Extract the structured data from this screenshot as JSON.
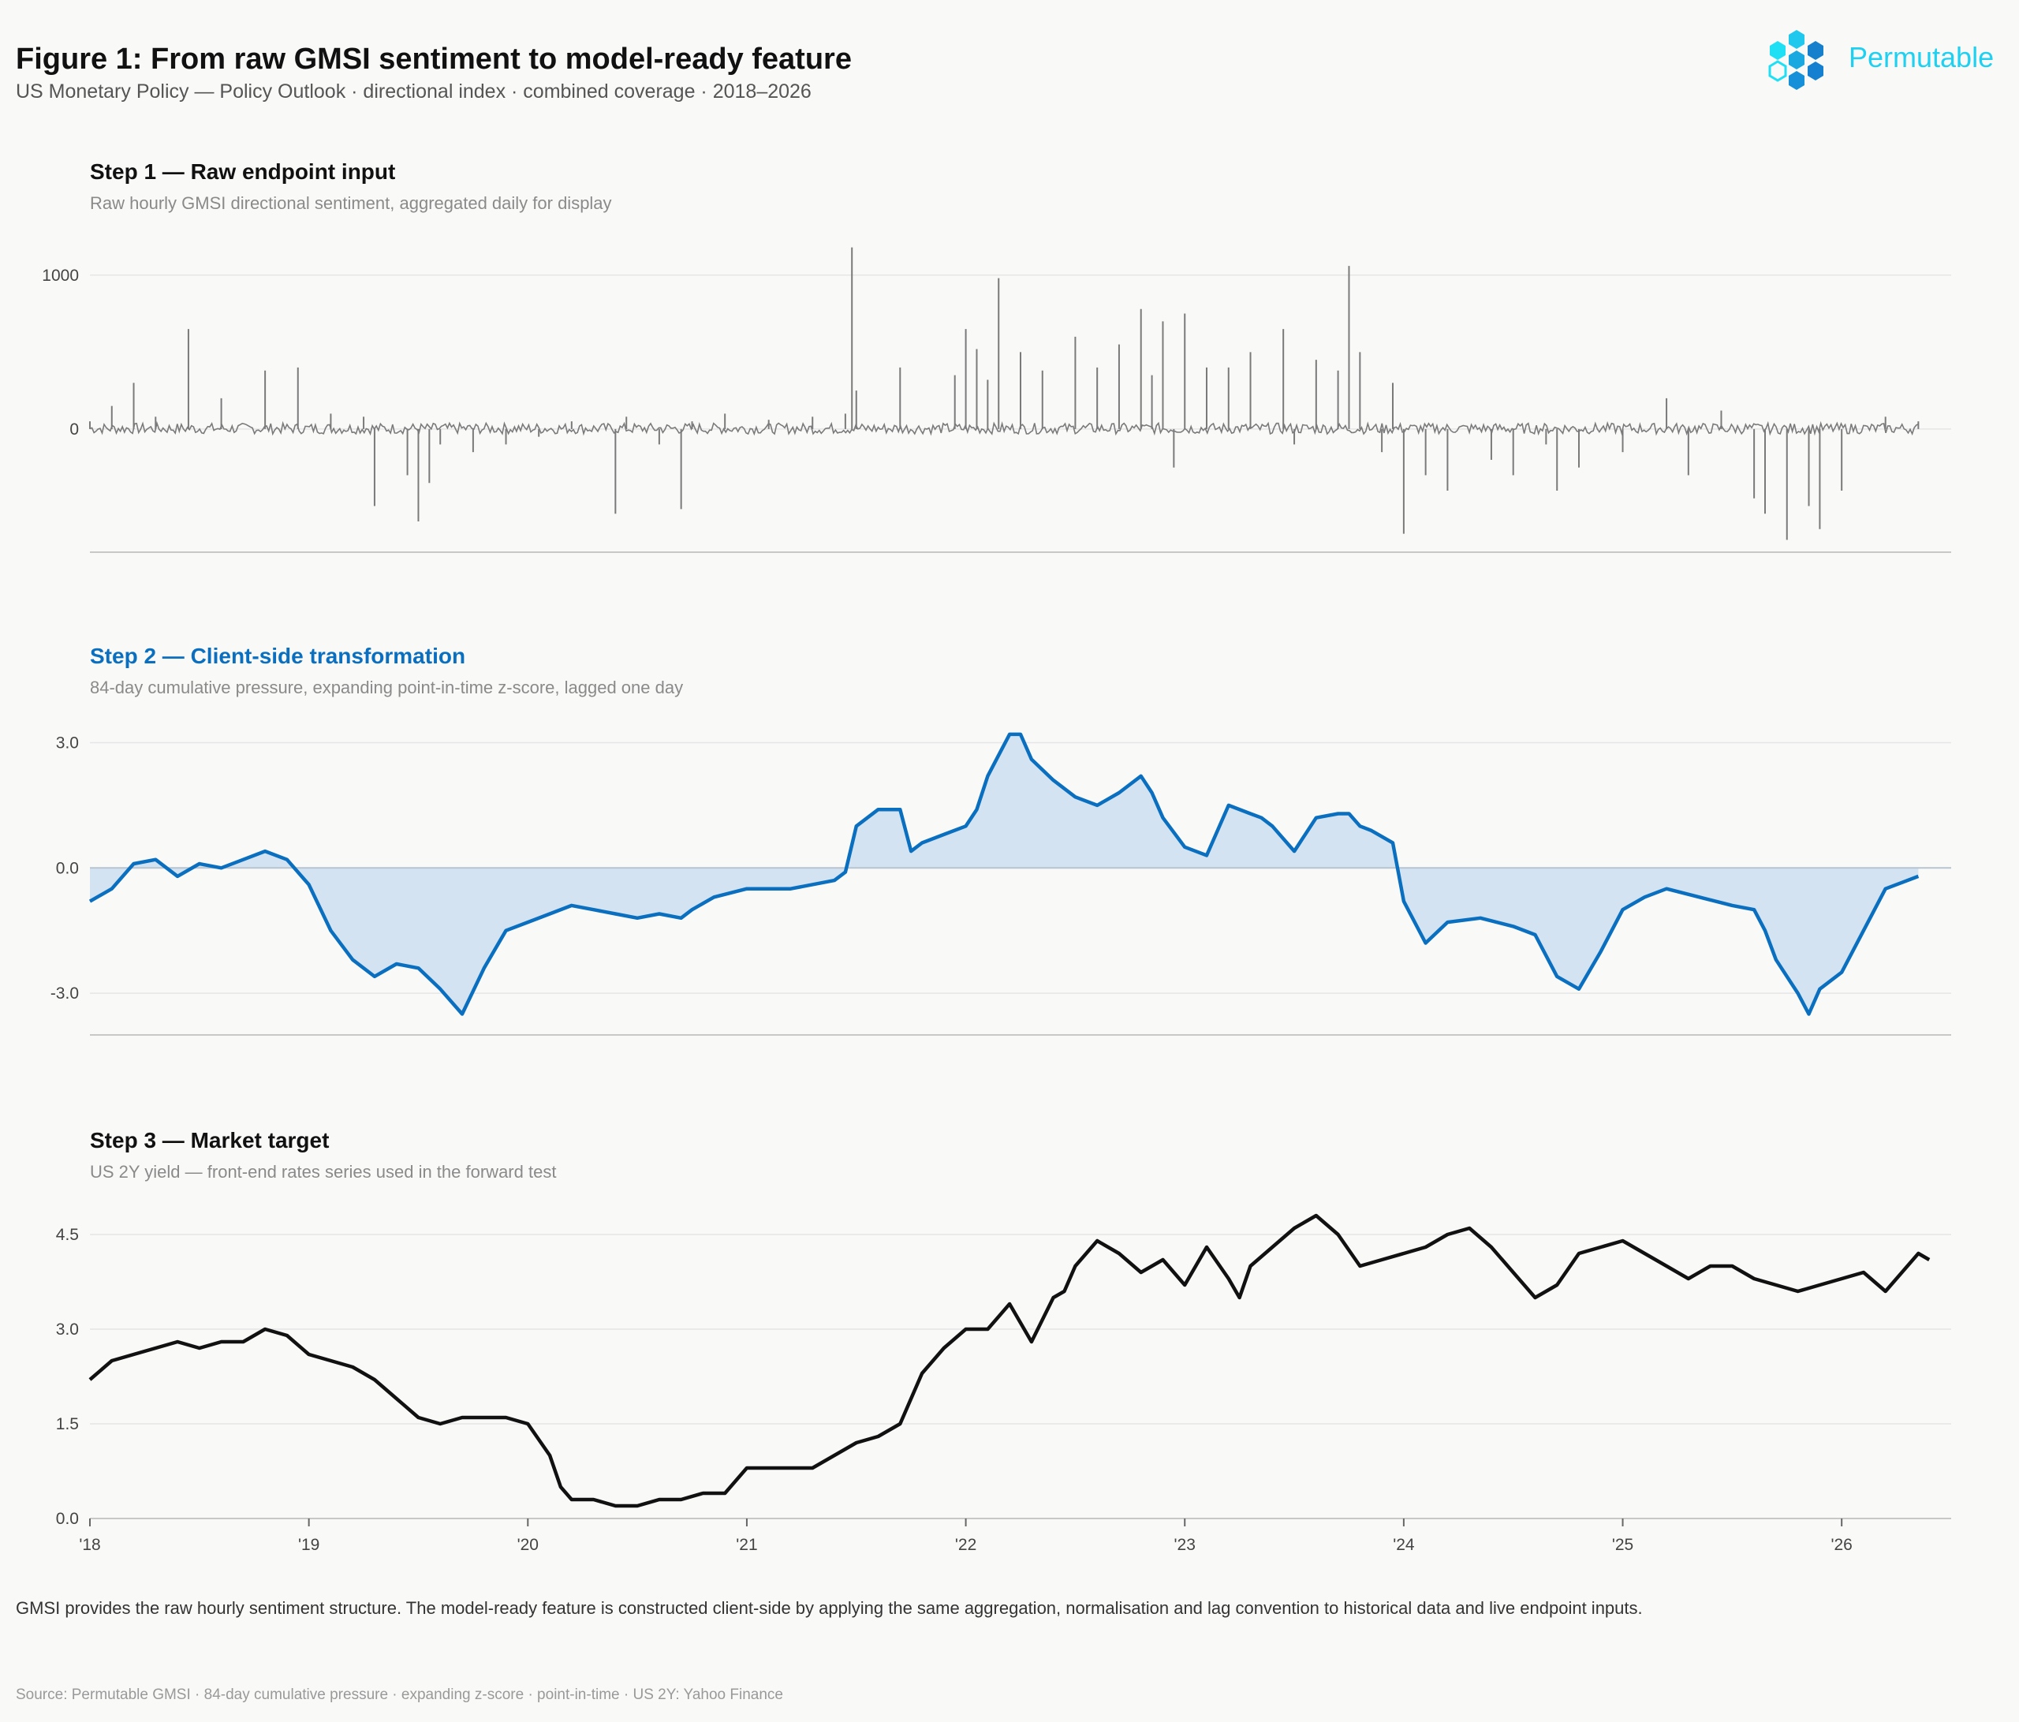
{
  "title": "Figure 1: From raw GMSI sentiment to model-ready feature",
  "subtitle": "US Monetary Policy — Policy Outlook  ·  directional index  ·  combined coverage  ·  2018–2026",
  "logo": {
    "text": "Permutable",
    "color": "#1fd0f0"
  },
  "colors": {
    "raw": "#7a7a7a",
    "transformed": "#0b6fc0",
    "fill": "#d3e3f2",
    "target": "#111111",
    "grid": "#e6e6e6",
    "axis": "#c8c8c8"
  },
  "panels": [
    {
      "step": "Step 1  —  Raw endpoint input",
      "desc": "Raw hourly GMSI directional sentiment, aggregated daily for display",
      "color": "#111111"
    },
    {
      "step": "Step 2  —  Client-side transformation",
      "desc": "84-day cumulative pressure, expanding point-in-time z-score, lagged one day",
      "color": "#0b6fc0"
    },
    {
      "step": "Step 3  —  Market target",
      "desc": "US 2Y yield — front-end rates series used in the forward test",
      "color": "#111111"
    }
  ],
  "caption": "GMSI provides the raw hourly sentiment structure. The model-ready feature is constructed client-side by applying the same aggregation, normalisation and lag convention to historical data and live endpoint inputs.",
  "source": "Source: Permutable GMSI  ·  84-day cumulative pressure  ·  expanding z-score  ·  point-in-time  ·  US 2Y: Yahoo Finance",
  "chart_data": [
    {
      "type": "line",
      "title": "Step 1  —  Raw endpoint input",
      "x_range": [
        2018.0,
        2026.5
      ],
      "ylim": [
        -800,
        1250
      ],
      "yticks": [
        "1000",
        "0"
      ],
      "ytick_values": [
        1000,
        0
      ],
      "series": [
        {
          "x": [
            2018.0,
            2018.1,
            2018.2,
            2018.3,
            2018.45,
            2018.6,
            2018.8,
            2018.95,
            2019.1,
            2019.25,
            2019.3,
            2019.45,
            2019.5,
            2019.55,
            2019.6,
            2019.75,
            2019.9,
            2020.05,
            2020.2,
            2020.4,
            2020.45,
            2020.6,
            2020.7,
            2020.75,
            2020.9,
            2021.1,
            2021.3,
            2021.45,
            2021.48,
            2021.5,
            2021.7,
            2021.95,
            2022.0,
            2022.05,
            2022.1,
            2022.15,
            2022.25,
            2022.35,
            2022.5,
            2022.6,
            2022.7,
            2022.8,
            2022.85,
            2022.9,
            2022.95,
            2023.0,
            2023.1,
            2023.2,
            2023.3,
            2023.45,
            2023.5,
            2023.6,
            2023.7,
            2023.75,
            2023.8,
            2023.9,
            2023.95,
            2024.0,
            2024.1,
            2024.2,
            2024.4,
            2024.5,
            2024.65,
            2024.7,
            2024.8,
            2025.0,
            2025.2,
            2025.3,
            2025.45,
            2025.6,
            2025.65,
            2025.75,
            2025.85,
            2025.9,
            2026.0,
            2026.2,
            2026.35
          ],
          "y": [
            50,
            150,
            300,
            80,
            650,
            200,
            380,
            400,
            100,
            80,
            -500,
            -300,
            -600,
            -350,
            -100,
            -150,
            -100,
            -50,
            50,
            -550,
            80,
            -100,
            -520,
            50,
            100,
            60,
            80,
            100,
            1180,
            250,
            400,
            350,
            650,
            520,
            320,
            980,
            500,
            380,
            600,
            400,
            550,
            780,
            350,
            700,
            -250,
            750,
            400,
            400,
            500,
            650,
            -100,
            450,
            380,
            1060,
            500,
            -150,
            300,
            -680,
            -300,
            -400,
            -200,
            -300,
            -100,
            -400,
            -250,
            -150,
            200,
            -300,
            120,
            -450,
            -550,
            -720,
            -500,
            -650,
            -400,
            80,
            50
          ]
        }
      ]
    },
    {
      "type": "area",
      "title": "Step 2  —  Client-side transformation",
      "x_range": [
        2018.0,
        2026.5
      ],
      "ylim": [
        -4.0,
        3.5
      ],
      "yticks": [
        "3.0",
        "0.0",
        "-3.0"
      ],
      "ytick_values": [
        3.0,
        0.0,
        -3.0
      ],
      "series": [
        {
          "x": [
            2018.0,
            2018.1,
            2018.2,
            2018.3,
            2018.4,
            2018.5,
            2018.6,
            2018.7,
            2018.8,
            2018.9,
            2019.0,
            2019.1,
            2019.2,
            2019.3,
            2019.4,
            2019.5,
            2019.6,
            2019.7,
            2019.8,
            2019.9,
            2020.0,
            2020.1,
            2020.2,
            2020.3,
            2020.4,
            2020.5,
            2020.6,
            2020.7,
            2020.75,
            2020.85,
            2021.0,
            2021.2,
            2021.4,
            2021.45,
            2021.5,
            2021.6,
            2021.7,
            2021.75,
            2021.8,
            2021.9,
            2022.0,
            2022.05,
            2022.1,
            2022.2,
            2022.25,
            2022.3,
            2022.4,
            2022.5,
            2022.6,
            2022.7,
            2022.8,
            2022.85,
            2022.9,
            2023.0,
            2023.1,
            2023.2,
            2023.3,
            2023.35,
            2023.4,
            2023.5,
            2023.6,
            2023.7,
            2023.75,
            2023.8,
            2023.85,
            2023.95,
            2024.0,
            2024.1,
            2024.2,
            2024.35,
            2024.5,
            2024.6,
            2024.7,
            2024.8,
            2024.9,
            2025.0,
            2025.1,
            2025.2,
            2025.35,
            2025.5,
            2025.6,
            2025.65,
            2025.7,
            2025.8,
            2025.85,
            2025.9,
            2026.0,
            2026.1,
            2026.2,
            2026.35
          ],
          "y": [
            -0.8,
            -0.5,
            0.1,
            0.2,
            -0.2,
            0.1,
            0.0,
            0.2,
            0.4,
            0.2,
            -0.4,
            -1.5,
            -2.2,
            -2.6,
            -2.3,
            -2.4,
            -2.9,
            -3.5,
            -2.4,
            -1.5,
            -1.3,
            -1.1,
            -0.9,
            -1.0,
            -1.1,
            -1.2,
            -1.1,
            -1.2,
            -1.0,
            -0.7,
            -0.5,
            -0.5,
            -0.3,
            -0.1,
            1.0,
            1.4,
            1.4,
            0.4,
            0.6,
            0.8,
            1.0,
            1.4,
            2.2,
            3.2,
            3.2,
            2.6,
            2.1,
            1.7,
            1.5,
            1.8,
            2.2,
            1.8,
            1.2,
            0.5,
            0.3,
            1.5,
            1.3,
            1.2,
            1.0,
            0.4,
            1.2,
            1.3,
            1.3,
            1.0,
            0.9,
            0.6,
            -0.8,
            -1.8,
            -1.3,
            -1.2,
            -1.4,
            -1.6,
            -2.6,
            -2.9,
            -2.0,
            -1.0,
            -0.7,
            -0.5,
            -0.7,
            -0.9,
            -1.0,
            -1.5,
            -2.2,
            -3.0,
            -3.5,
            -2.9,
            -2.5,
            -1.5,
            -0.5,
            -0.2
          ]
        }
      ]
    },
    {
      "type": "line",
      "title": "Step 3  —  Market target",
      "x_range": [
        2018.0,
        2026.5
      ],
      "ylim": [
        0.0,
        5.0
      ],
      "yticks": [
        "4.5",
        "3.0",
        "1.5",
        "0.0"
      ],
      "ytick_values": [
        4.5,
        3.0,
        1.5,
        0.0
      ],
      "xticks": [
        "'18",
        "'19",
        "'20",
        "'21",
        "'22",
        "'23",
        "'24",
        "'25",
        "'26"
      ],
      "xtick_values": [
        2018,
        2019,
        2020,
        2021,
        2022,
        2023,
        2024,
        2025,
        2026
      ],
      "series": [
        {
          "x": [
            2018.0,
            2018.1,
            2018.2,
            2018.3,
            2018.4,
            2018.5,
            2018.6,
            2018.7,
            2018.8,
            2018.9,
            2019.0,
            2019.1,
            2019.2,
            2019.3,
            2019.4,
            2019.5,
            2019.6,
            2019.7,
            2019.8,
            2019.9,
            2020.0,
            2020.1,
            2020.15,
            2020.2,
            2020.3,
            2020.4,
            2020.5,
            2020.6,
            2020.7,
            2020.8,
            2020.9,
            2021.0,
            2021.1,
            2021.2,
            2021.3,
            2021.4,
            2021.5,
            2021.6,
            2021.7,
            2021.8,
            2021.9,
            2022.0,
            2022.1,
            2022.2,
            2022.3,
            2022.4,
            2022.45,
            2022.5,
            2022.6,
            2022.7,
            2022.8,
            2022.85,
            2022.9,
            2023.0,
            2023.1,
            2023.2,
            2023.25,
            2023.3,
            2023.4,
            2023.5,
            2023.6,
            2023.7,
            2023.8,
            2023.9,
            2024.0,
            2024.1,
            2024.2,
            2024.3,
            2024.4,
            2024.5,
            2024.6,
            2024.7,
            2024.8,
            2024.9,
            2025.0,
            2025.1,
            2025.2,
            2025.3,
            2025.4,
            2025.5,
            2025.6,
            2025.7,
            2025.8,
            2025.9,
            2026.0,
            2026.1,
            2026.2,
            2026.3,
            2026.35,
            2026.4
          ],
          "y": [
            2.2,
            2.5,
            2.6,
            2.7,
            2.8,
            2.7,
            2.8,
            2.8,
            3.0,
            2.9,
            2.6,
            2.5,
            2.4,
            2.2,
            1.9,
            1.6,
            1.5,
            1.6,
            1.6,
            1.6,
            1.5,
            1.0,
            0.5,
            0.3,
            0.3,
            0.2,
            0.2,
            0.3,
            0.3,
            0.4,
            0.4,
            0.8,
            0.8,
            0.8,
            0.8,
            1.0,
            1.2,
            1.3,
            1.5,
            2.3,
            2.7,
            3.0,
            3.0,
            3.4,
            2.8,
            3.5,
            3.6,
            4.0,
            4.4,
            4.2,
            3.9,
            4.0,
            4.1,
            3.7,
            4.3,
            3.8,
            3.5,
            4.0,
            4.3,
            4.6,
            4.8,
            4.5,
            4.0,
            4.1,
            4.2,
            4.3,
            4.5,
            4.6,
            4.3,
            3.9,
            3.5,
            3.7,
            4.2,
            4.3,
            4.4,
            4.2,
            4.0,
            3.8,
            4.0,
            4.0,
            3.8,
            3.7,
            3.6,
            3.7,
            3.8,
            3.9,
            3.6,
            4.0,
            4.2,
            4.1
          ]
        }
      ]
    }
  ]
}
